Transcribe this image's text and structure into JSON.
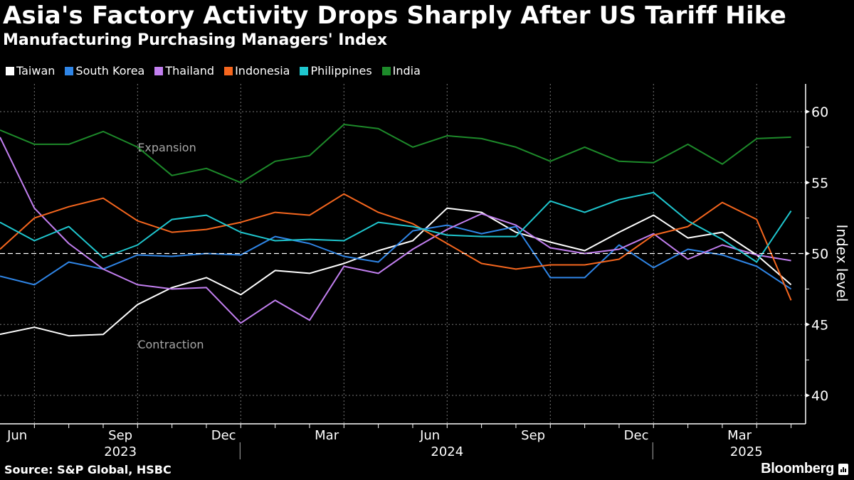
{
  "header": {
    "title": "Asia's Factory Activity Drops Sharply After US Tariff Hike",
    "subtitle": "Manufacturing Purchasing Managers' Index"
  },
  "footer": {
    "source": "Source: S&P Global, HSBC",
    "brand": "Bloomberg",
    "brand_icon": "bloomberg-chart-icon"
  },
  "chart_data": {
    "type": "line",
    "title": "Asia's Factory Activity Drops Sharply After US Tariff Hike",
    "subtitle": "Manufacturing Purchasing Managers' Index",
    "xlabel": "",
    "ylabel": "Index level",
    "ylim": [
      38,
      62
    ],
    "yticks": [
      40,
      45,
      50,
      55,
      60
    ],
    "reference_line": 50,
    "annotations": [
      {
        "text": "Expansion",
        "x": "Oct 2023",
        "y": 57.2
      },
      {
        "text": "Contraction",
        "x": "Oct 2023",
        "y": 43.3
      }
    ],
    "x": [
      "Jun 2023",
      "Jul 2023",
      "Aug 2023",
      "Sep 2023",
      "Oct 2023",
      "Nov 2023",
      "Dec 2023",
      "Jan 2024",
      "Feb 2024",
      "Mar 2024",
      "Apr 2024",
      "May 2024",
      "Jun 2024",
      "Jul 2024",
      "Aug 2024",
      "Sep 2024",
      "Oct 2024",
      "Nov 2024",
      "Dec 2024",
      "Jan 2025",
      "Feb 2025",
      "Mar 2025",
      "Apr 2025",
      "May 2025"
    ],
    "xtick_labels": [
      {
        "label": "Jun",
        "index": 0
      },
      {
        "label": "Sep",
        "index": 3
      },
      {
        "label": "Dec",
        "index": 6
      },
      {
        "label": "Mar",
        "index": 9
      },
      {
        "label": "Jun",
        "index": 12
      },
      {
        "label": "Sep",
        "index": 15
      },
      {
        "label": "Dec",
        "index": 18
      },
      {
        "label": "Mar",
        "index": 21
      }
    ],
    "year_labels": [
      {
        "label": "2023",
        "center_index": 3
      },
      {
        "label": "2024",
        "center_index": 12.5
      },
      {
        "label": "2025",
        "center_index": 21.2
      }
    ],
    "grid": true,
    "legend_position": "top-left",
    "series": [
      {
        "name": "Taiwan",
        "color": "#ffffff",
        "values": [
          44.3,
          44.8,
          44.2,
          44.3,
          46.4,
          47.6,
          48.3,
          47.1,
          48.8,
          48.6,
          49.3,
          50.2,
          50.9,
          53.2,
          52.9,
          51.5,
          50.8,
          50.2,
          51.5,
          52.7,
          51.1,
          51.5,
          49.9,
          47.8
        ]
      },
      {
        "name": "South Korea",
        "color": "#2f85e6",
        "values": [
          48.4,
          47.8,
          49.4,
          48.9,
          49.9,
          49.8,
          50.0,
          49.9,
          51.2,
          50.7,
          49.8,
          49.4,
          51.6,
          52.0,
          51.4,
          51.9,
          48.3,
          48.3,
          50.6,
          49.0,
          50.3,
          49.9,
          49.1,
          47.5
        ]
      },
      {
        "name": "Thailand",
        "color": "#c27ff0",
        "values": [
          58.2,
          53.2,
          50.7,
          48.9,
          47.8,
          47.5,
          47.6,
          45.1,
          46.7,
          45.3,
          49.1,
          48.6,
          50.3,
          51.7,
          52.8,
          52.0,
          50.4,
          50.0,
          50.3,
          51.4,
          49.6,
          50.6,
          49.9,
          49.5
        ]
      },
      {
        "name": "Indonesia",
        "color": "#f5661e",
        "values": [
          50.3,
          52.5,
          53.3,
          53.9,
          52.3,
          51.5,
          51.7,
          52.2,
          52.9,
          52.7,
          54.2,
          52.9,
          52.1,
          50.7,
          49.3,
          48.9,
          49.2,
          49.2,
          49.6,
          51.3,
          51.9,
          53.6,
          52.4,
          46.7
        ]
      },
      {
        "name": "Philippines",
        "color": "#1fc7cf",
        "values": [
          52.2,
          50.9,
          51.9,
          49.7,
          50.6,
          52.4,
          52.7,
          51.5,
          50.9,
          51.0,
          50.9,
          52.2,
          51.9,
          51.3,
          51.2,
          51.2,
          53.7,
          52.9,
          53.8,
          54.3,
          52.3,
          51.0,
          49.4,
          53.0
        ]
      },
      {
        "name": "India",
        "color": "#1d8a2a",
        "values": [
          58.7,
          57.7,
          57.7,
          58.6,
          57.5,
          55.5,
          56.0,
          55.0,
          56.5,
          56.9,
          59.1,
          58.8,
          57.5,
          58.3,
          58.1,
          57.5,
          56.5,
          57.5,
          56.5,
          56.4,
          57.7,
          56.3,
          58.1,
          58.2
        ]
      }
    ]
  }
}
